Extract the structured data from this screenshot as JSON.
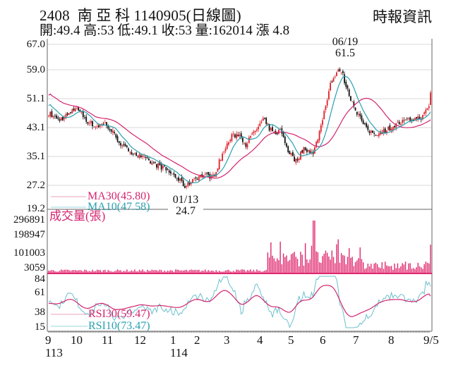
{
  "header": {
    "title": "2408  南 亞 科 1140905(日線圖)",
    "subtitle": "開:49.4 高:53 低:49.1 收:53 量:162014 漲 4.8",
    "brand": "時報資訊"
  },
  "colors": {
    "up": "#e0202a",
    "down": "#111111",
    "ma30": "#d4246e",
    "ma10": "#2aa0b0",
    "volume": "#e0286e",
    "rsi30": "#d4246e",
    "rsi10": "#6cc0cc",
    "grid": "#d8d8d8",
    "axis": "#555555"
  },
  "price_panel": {
    "y_ticks": [
      "67.0",
      "59.0",
      "51.1",
      "43.1",
      "35.1",
      "27.2",
      "19.2"
    ],
    "legend": {
      "ma30": "MA30(45.80)",
      "ma10": "MA10(47.58)"
    },
    "annotations": {
      "high_date": "06/19",
      "high_value": "61.5",
      "low_date": "01/13",
      "low_value": "24.7"
    }
  },
  "volume_panel": {
    "title": "成交量(張)",
    "y_ticks": [
      "296891",
      "198947",
      "101003",
      "3059"
    ]
  },
  "rsi_panel": {
    "y_ticks": [
      "84",
      "61",
      "38",
      "15"
    ],
    "legend": {
      "rsi30": "RSI30(59.47)",
      "rsi10": "RSI10(73.47)"
    }
  },
  "x_axis": {
    "month_labels": [
      "9",
      "10",
      "11",
      "12",
      "1",
      "2",
      "3",
      "4",
      "5",
      "6",
      "7",
      "8",
      "9/5"
    ],
    "year_labels": [
      "113",
      "114"
    ]
  },
  "chart_data": {
    "type": "candlestick",
    "title": "2408 南亞科 1140905 (日線圖)",
    "ohlc_latest": {
      "open": 49.4,
      "high": 53,
      "low": 49.1,
      "close": 53,
      "volume": 162014,
      "change": 4.8
    },
    "x_range": [
      "113/09",
      "114/09/05"
    ],
    "price": {
      "ylim": [
        19.2,
        67.0
      ],
      "y_ticks": [
        67.0,
        59.0,
        51.1,
        43.1,
        35.1,
        27.2,
        19.2
      ],
      "monthly_close_approx": {
        "categories": [
          "9",
          "10",
          "11",
          "12",
          "1",
          "2",
          "3",
          "4",
          "5",
          "6",
          "7",
          "8",
          "9/5"
        ],
        "values": [
          46,
          47,
          40,
          33,
          26,
          30,
          44,
          33,
          38,
          53,
          45,
          46,
          53
        ]
      },
      "high": {
        "date": "06/19",
        "value": 61.5
      },
      "low": {
        "date": "01/13",
        "value": 24.7
      },
      "ma30_latest": 45.8,
      "ma10_latest": 47.58
    },
    "volume": {
      "ylabel": "成交量(張)",
      "y_ticks": [
        296891,
        198947,
        101003,
        3059
      ],
      "latest": 162014
    },
    "rsi": {
      "y_ticks": [
        84,
        61,
        38,
        15
      ],
      "rsi30_latest": 59.47,
      "rsi10_latest": 73.47
    }
  }
}
